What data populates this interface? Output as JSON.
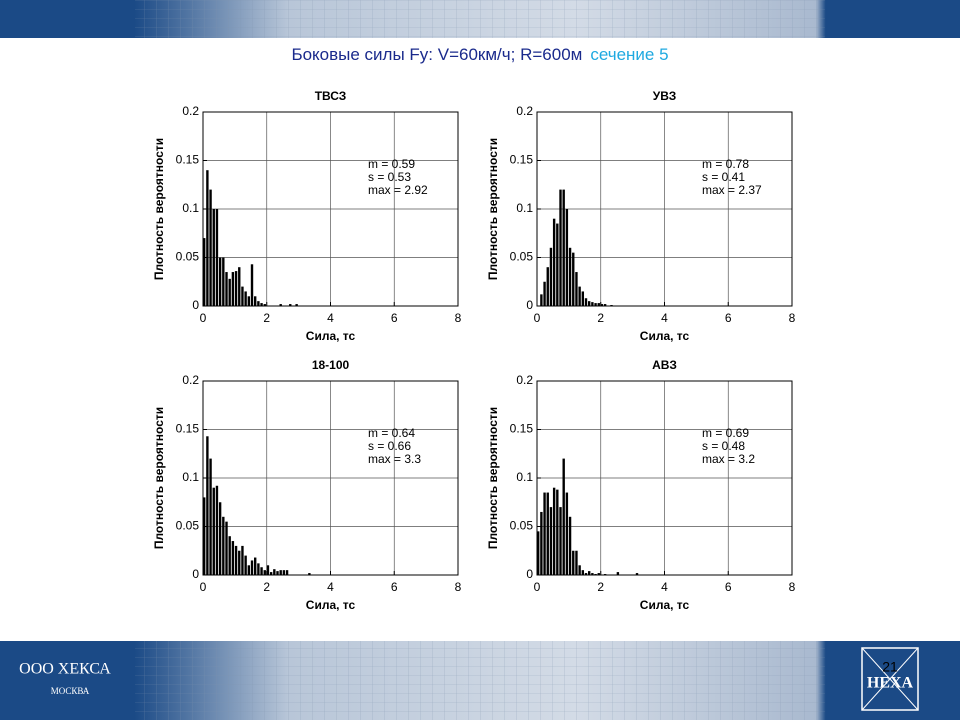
{
  "slide_title": "Боковые силы  Fy:  V=60км/ч; R=600м",
  "slide_title_highlight": "сечение 5",
  "company": "ООО ХЕКСА",
  "city": "МОСКВА",
  "page_number": "21",
  "logo": "HEXA",
  "chart_data": [
    {
      "type": "histogram",
      "title": "ТВСЗ",
      "xlabel": "Сила, тс",
      "ylabel": "Плотность вероятности",
      "color": "#000000",
      "grid": true,
      "xlim": [
        0,
        8
      ],
      "xticks": [
        0,
        2,
        4,
        6,
        8
      ],
      "ylim": [
        0,
        0.2
      ],
      "yticks": [
        0,
        0.05,
        0.1,
        0.15,
        0.2
      ],
      "annotations": [
        "m = 0.59",
        "s  = 0.53",
        "max  = 2.92"
      ],
      "bins": [
        0,
        0.1,
        0.2,
        0.3,
        0.4,
        0.5,
        0.6,
        0.7,
        0.8,
        0.9,
        1.0,
        1.1,
        1.2,
        1.3,
        1.4,
        1.5,
        1.6,
        1.7,
        1.8,
        1.9,
        2.0,
        2.1,
        2.2,
        2.3,
        2.4,
        2.5,
        2.6,
        2.7,
        2.8,
        2.9,
        3.0
      ],
      "values": [
        0.07,
        0.14,
        0.12,
        0.1,
        0.1,
        0.05,
        0.05,
        0.035,
        0.028,
        0.035,
        0.036,
        0.04,
        0.02,
        0.015,
        0.01,
        0.043,
        0.01,
        0.005,
        0.003,
        0.002,
        0,
        0,
        0,
        0,
        0.002,
        0,
        0,
        0.002,
        0,
        0.002
      ]
    },
    {
      "type": "histogram",
      "title": "УВЗ",
      "xlabel": "Сила, тс",
      "ylabel": "Плотность вероятности",
      "color": "#000000",
      "grid": true,
      "xlim": [
        0,
        8
      ],
      "xticks": [
        0,
        2,
        4,
        6,
        8
      ],
      "ylim": [
        0,
        0.2
      ],
      "yticks": [
        0,
        0.05,
        0.1,
        0.15,
        0.2
      ],
      "annotations": [
        "m = 0.78",
        "s  = 0.41",
        "max  = 2.37"
      ],
      "bins": [
        0,
        0.1,
        0.2,
        0.3,
        0.4,
        0.5,
        0.6,
        0.7,
        0.8,
        0.9,
        1.0,
        1.1,
        1.2,
        1.3,
        1.4,
        1.5,
        1.6,
        1.7,
        1.8,
        1.9,
        2.0,
        2.1,
        2.2,
        2.3,
        2.4
      ],
      "values": [
        0,
        0.012,
        0.025,
        0.04,
        0.06,
        0.09,
        0.085,
        0.12,
        0.12,
        0.1,
        0.06,
        0.055,
        0.035,
        0.02,
        0.015,
        0.008,
        0.005,
        0.004,
        0.003,
        0.003,
        0.002,
        0.002,
        0,
        0.001
      ]
    },
    {
      "type": "histogram",
      "title": "18-100",
      "xlabel": "Сила, тс",
      "ylabel": "Плотность вероятности",
      "color": "#000000",
      "grid": true,
      "xlim": [
        0,
        8
      ],
      "xticks": [
        0,
        2,
        4,
        6,
        8
      ],
      "ylim": [
        0,
        0.2
      ],
      "yticks": [
        0,
        0.05,
        0.1,
        0.15,
        0.2
      ],
      "annotations": [
        "m = 0.64",
        "s  = 0.66",
        "max  = 3.3"
      ],
      "bins": [
        0,
        0.1,
        0.2,
        0.3,
        0.4,
        0.5,
        0.6,
        0.7,
        0.8,
        0.9,
        1.0,
        1.1,
        1.2,
        1.3,
        1.4,
        1.5,
        1.6,
        1.7,
        1.8,
        1.9,
        2.0,
        2.1,
        2.2,
        2.3,
        2.4,
        2.5,
        2.6,
        2.7,
        2.8,
        2.9,
        3.0,
        3.1,
        3.2,
        3.3,
        3.4
      ],
      "values": [
        0.08,
        0.143,
        0.12,
        0.09,
        0.092,
        0.075,
        0.06,
        0.055,
        0.04,
        0.035,
        0.03,
        0.025,
        0.03,
        0.02,
        0.01,
        0.015,
        0.018,
        0.012,
        0.008,
        0.005,
        0.01,
        0.003,
        0.006,
        0.004,
        0.005,
        0.005,
        0.005,
        0,
        0,
        0,
        0,
        0,
        0,
        0.002
      ]
    },
    {
      "type": "histogram",
      "title": "АВЗ",
      "xlabel": "Сила, тс",
      "ylabel": "Плотность вероятности",
      "color": "#000000",
      "grid": true,
      "xlim": [
        0,
        8
      ],
      "xticks": [
        0,
        2,
        4,
        6,
        8
      ],
      "ylim": [
        0,
        0.2
      ],
      "yticks": [
        0,
        0.05,
        0.1,
        0.15,
        0.2
      ],
      "annotations": [
        "m = 0.69",
        "s  = 0.48",
        "max  = 3.2"
      ],
      "bins": [
        0,
        0.1,
        0.2,
        0.3,
        0.4,
        0.5,
        0.6,
        0.7,
        0.8,
        0.9,
        1.0,
        1.1,
        1.2,
        1.3,
        1.4,
        1.5,
        1.6,
        1.7,
        1.8,
        1.9,
        2.0,
        2.1,
        2.2,
        2.3,
        2.4,
        2.5,
        2.6,
        2.7,
        2.8,
        2.9,
        3.0,
        3.1,
        3.2
      ],
      "values": [
        0.045,
        0.065,
        0.085,
        0.085,
        0.07,
        0.09,
        0.088,
        0.07,
        0.12,
        0.085,
        0.06,
        0.025,
        0.025,
        0.01,
        0.005,
        0.002,
        0.004,
        0.002,
        0.001,
        0.002,
        0,
        0.001,
        0,
        0,
        0,
        0.003,
        0,
        0,
        0,
        0,
        0,
        0.002
      ]
    }
  ]
}
